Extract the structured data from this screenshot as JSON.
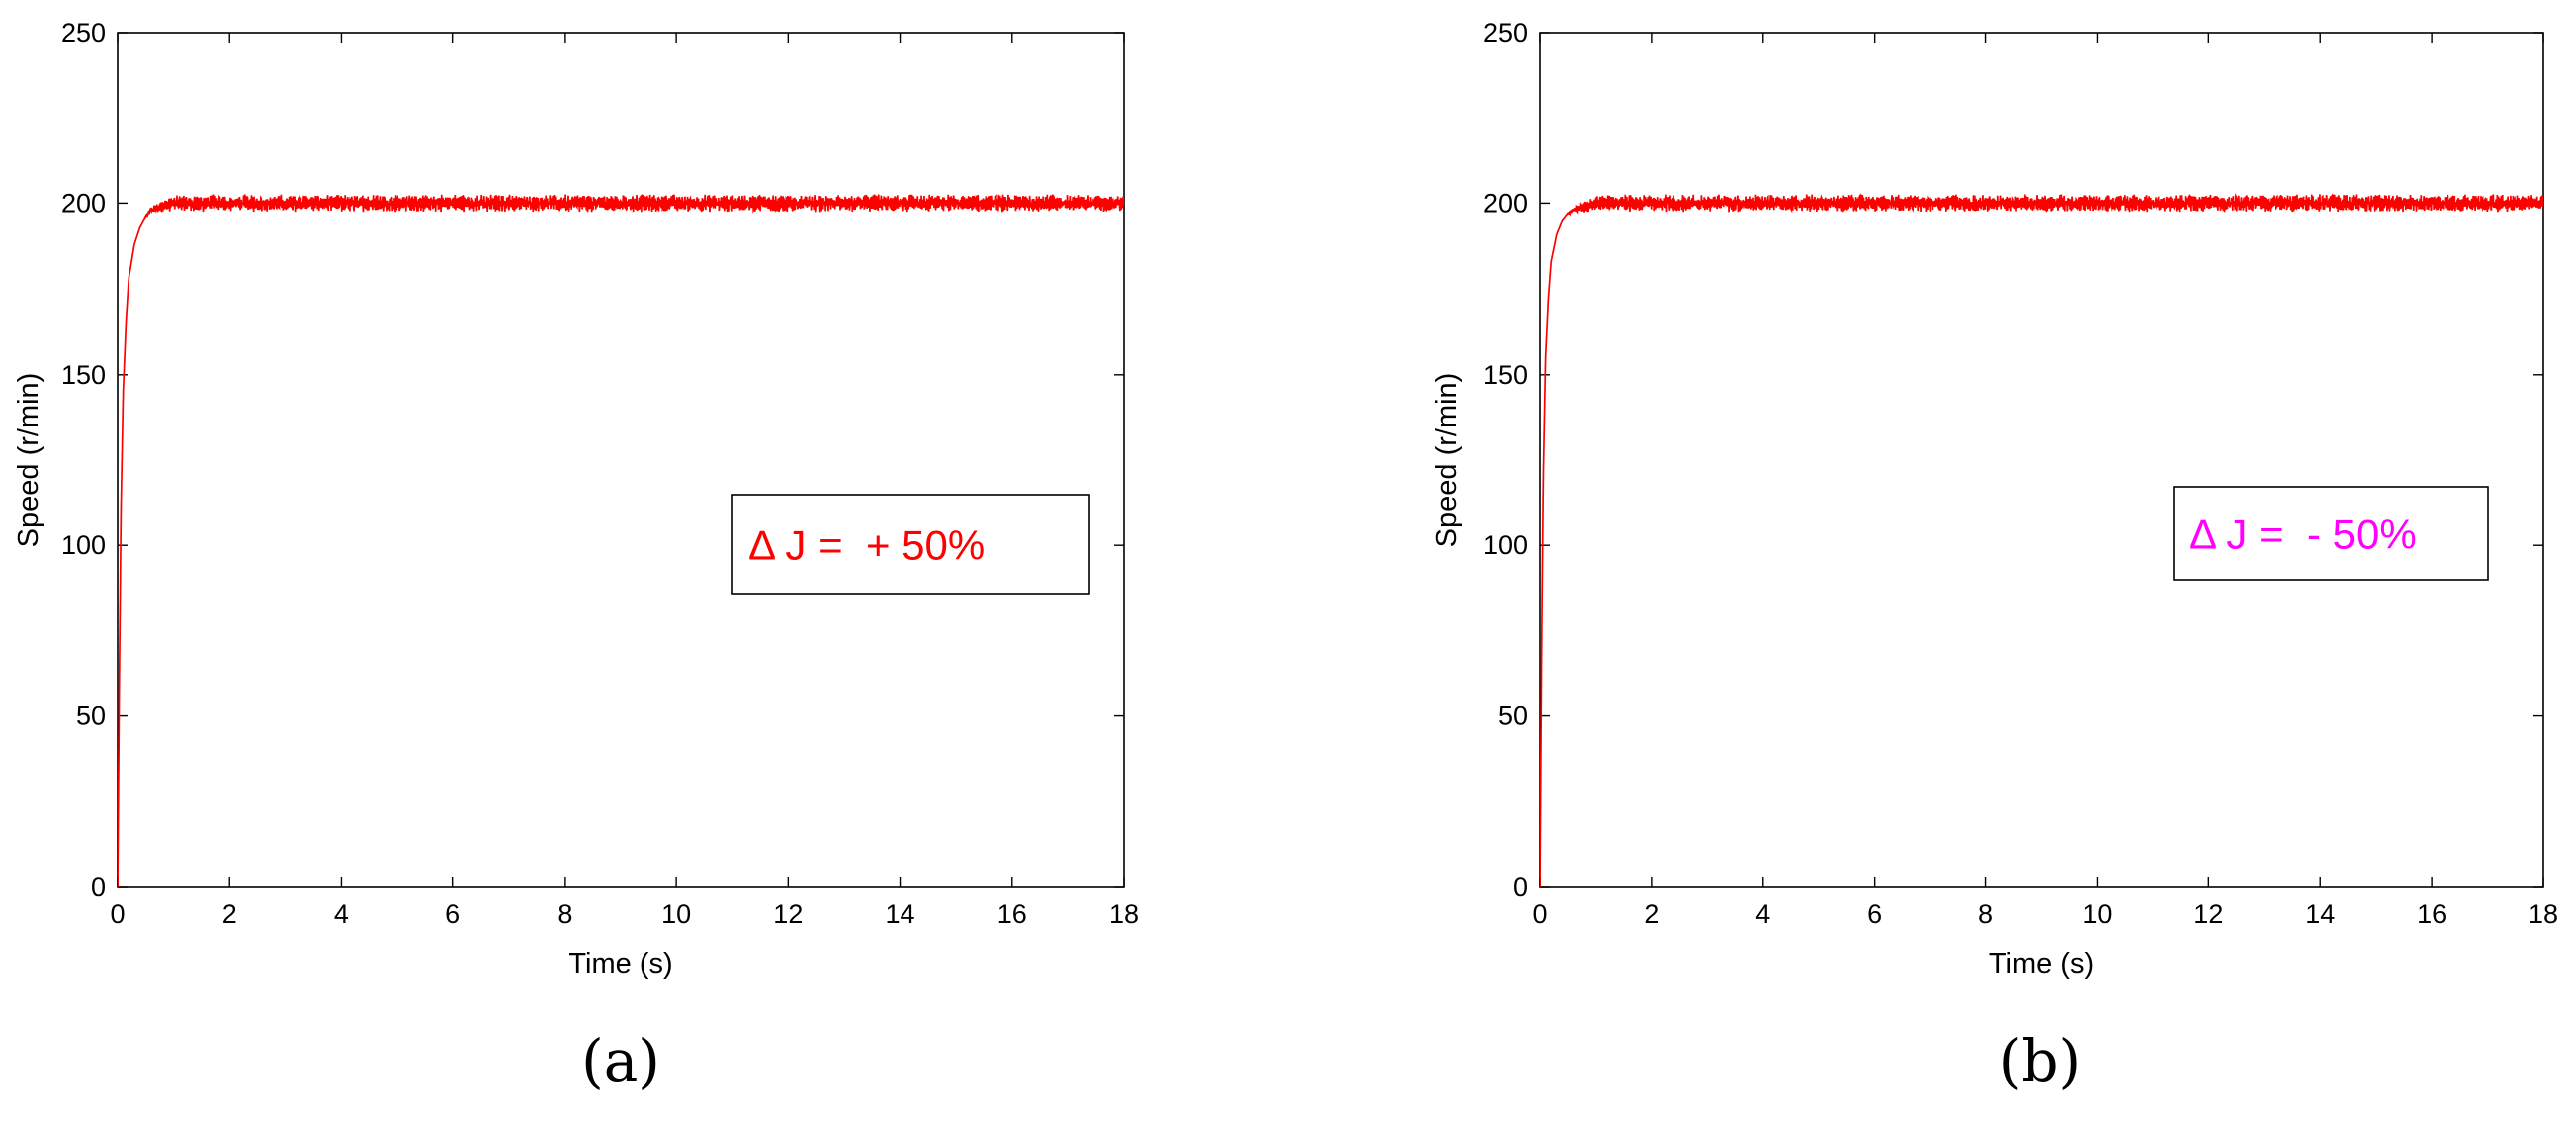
{
  "chart_data": [
    {
      "type": "line",
      "panel_label": "(a)",
      "xlabel": "Time (s)",
      "ylabel": "Speed (r/min)",
      "xlim": [
        0,
        18
      ],
      "ylim": [
        0,
        250
      ],
      "xticks": [
        0,
        2,
        4,
        6,
        8,
        10,
        12,
        14,
        16,
        18
      ],
      "yticks": [
        0,
        50,
        100,
        150,
        200,
        250
      ],
      "grid": false,
      "annotation": {
        "text": "Δ J =  + 50%",
        "color": "#ff0000"
      },
      "series": [
        {
          "color": "#ff0000",
          "x": [
            0,
            0.03,
            0.06,
            0.1,
            0.15,
            0.2,
            0.3,
            0.4,
            0.5,
            0.6,
            0.8,
            1.0,
            1.5,
            2,
            4,
            6,
            8,
            10,
            12,
            14,
            16,
            18
          ],
          "y": [
            0,
            60,
            110,
            145,
            165,
            178,
            188,
            193,
            196,
            198,
            199,
            200,
            200,
            200,
            200,
            200,
            200,
            200,
            200,
            200,
            200,
            200
          ],
          "ripple_amplitude": 2.5
        }
      ]
    },
    {
      "type": "line",
      "panel_label": "(b)",
      "xlabel": "Time (s)",
      "ylabel": "Speed (r/min)",
      "xlim": [
        0,
        18
      ],
      "ylim": [
        0,
        250
      ],
      "xticks": [
        0,
        2,
        4,
        6,
        8,
        10,
        12,
        14,
        16,
        18
      ],
      "yticks": [
        0,
        50,
        100,
        150,
        200,
        250
      ],
      "grid": false,
      "annotation": {
        "text": "Δ J =  - 50%",
        "color": "#ff00ff"
      },
      "series": [
        {
          "color": "#ff0000",
          "x": [
            0,
            0.03,
            0.06,
            0.1,
            0.15,
            0.2,
            0.3,
            0.4,
            0.5,
            0.6,
            0.8,
            1.0,
            1.5,
            2,
            4,
            6,
            8,
            10,
            12,
            14,
            16,
            18
          ],
          "y": [
            0,
            70,
            120,
            155,
            172,
            183,
            191,
            195,
            197,
            198,
            199,
            200,
            200,
            200,
            200,
            200,
            200,
            200,
            200,
            200,
            200,
            200
          ],
          "ripple_amplitude": 2.5
        }
      ]
    }
  ]
}
